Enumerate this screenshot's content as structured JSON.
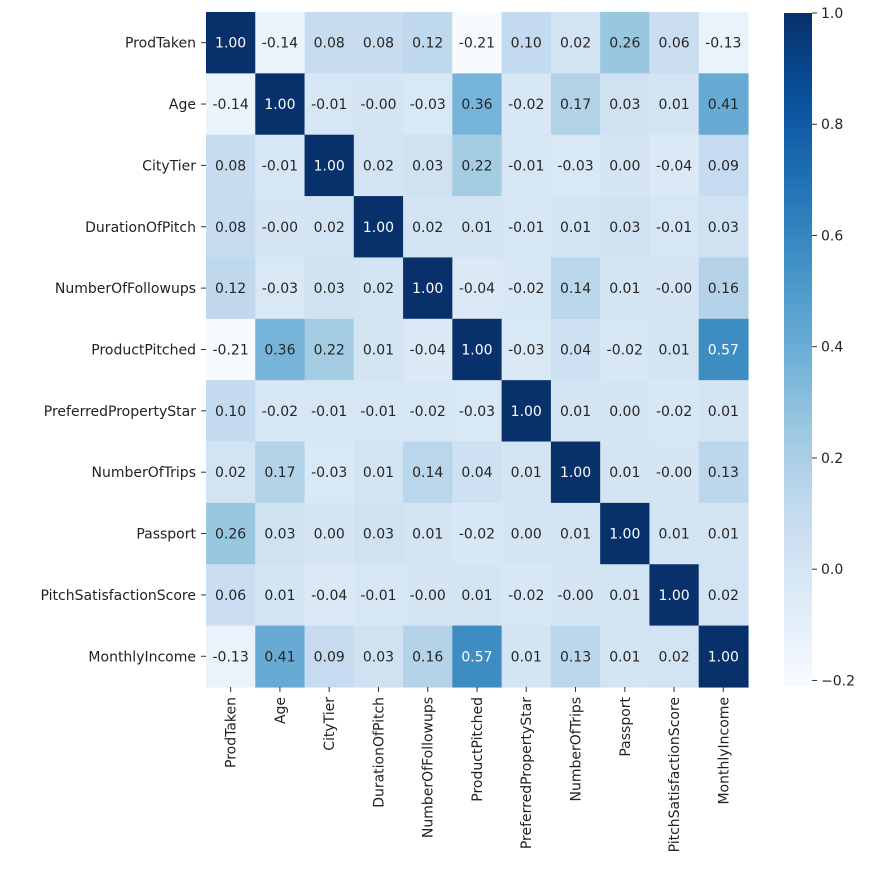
{
  "chart_data": {
    "type": "heatmap",
    "colormap": "Blues",
    "xlabels": [
      "ProdTaken",
      "Age",
      "CityTier",
      "DurationOfPitch",
      "NumberOfFollowups",
      "ProductPitched",
      "PreferredPropertyStar",
      "NumberOfTrips",
      "Passport",
      "PitchSatisfactionScore",
      "MonthlyIncome"
    ],
    "ylabels": [
      "ProdTaken",
      "Age",
      "CityTier",
      "DurationOfPitch",
      "NumberOfFollowups",
      "ProductPitched",
      "PreferredPropertyStar",
      "NumberOfTrips",
      "Passport",
      "PitchSatisfactionScore",
      "MonthlyIncome"
    ],
    "values": [
      [
        1.0,
        -0.14,
        0.08,
        0.08,
        0.12,
        -0.21,
        0.1,
        0.02,
        0.26,
        0.06,
        -0.13
      ],
      [
        -0.14,
        1.0,
        -0.01,
        -0.0,
        -0.03,
        0.36,
        -0.02,
        0.17,
        0.03,
        0.01,
        0.41
      ],
      [
        0.08,
        -0.01,
        1.0,
        0.02,
        0.03,
        0.22,
        -0.01,
        -0.03,
        0.0,
        -0.04,
        0.09
      ],
      [
        0.08,
        -0.0,
        0.02,
        1.0,
        0.02,
        0.01,
        -0.01,
        0.01,
        0.03,
        -0.01,
        0.03
      ],
      [
        0.12,
        -0.03,
        0.03,
        0.02,
        1.0,
        -0.04,
        -0.02,
        0.14,
        0.01,
        -0.0,
        0.16
      ],
      [
        -0.21,
        0.36,
        0.22,
        0.01,
        -0.04,
        1.0,
        -0.03,
        0.04,
        -0.02,
        0.01,
        0.57
      ],
      [
        0.1,
        -0.02,
        -0.01,
        -0.01,
        -0.02,
        -0.03,
        1.0,
        0.01,
        0.0,
        -0.02,
        0.01
      ],
      [
        0.02,
        0.17,
        -0.03,
        0.01,
        0.14,
        0.04,
        0.01,
        1.0,
        0.01,
        -0.0,
        0.13
      ],
      [
        0.26,
        0.03,
        0.0,
        0.03,
        0.01,
        -0.02,
        0.0,
        0.01,
        1.0,
        0.01,
        0.01
      ],
      [
        0.06,
        0.01,
        -0.04,
        -0.01,
        -0.0,
        0.01,
        -0.02,
        -0.0,
        0.01,
        1.0,
        0.02
      ],
      [
        -0.13,
        0.41,
        0.09,
        0.03,
        0.16,
        0.57,
        0.01,
        0.13,
        0.01,
        0.02,
        1.0
      ]
    ],
    "vmin": -0.21,
    "vmax": 1.0,
    "colorbar_ticks": [
      1.0,
      0.8,
      0.6,
      0.4,
      0.2,
      0.0,
      -0.2
    ],
    "colorbar_tick_labels": [
      "1.0",
      "0.8",
      "0.6",
      "0.4",
      "0.2",
      "0.0",
      "−0.2"
    ],
    "annotation_format": "2 decimals",
    "title": "",
    "xlabel": "",
    "ylabel": ""
  }
}
